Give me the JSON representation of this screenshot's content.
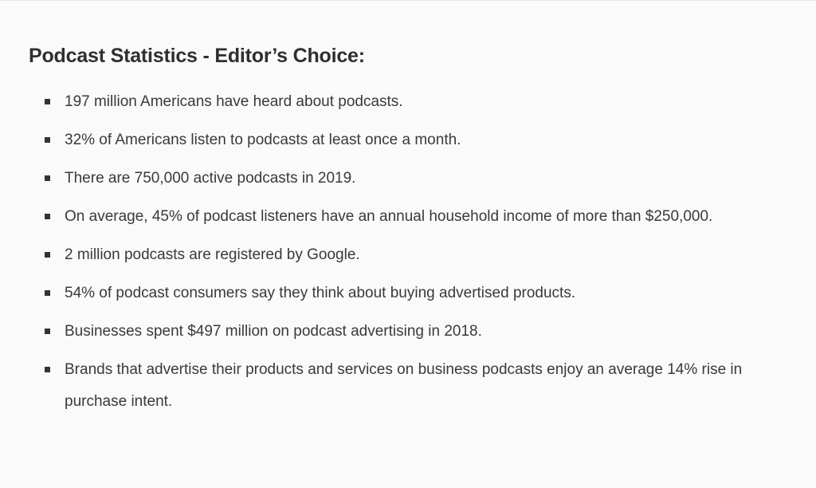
{
  "article": {
    "heading": "Podcast Statistics - Editor’s Choice:",
    "items": [
      {
        "text": "197 million Americans have heard about podcasts."
      },
      {
        "text": "32% of Americans listen to podcasts at least once a month."
      },
      {
        "text": "There are 750,000 active podcasts in 2019."
      },
      {
        "text": "On average, 45% of podcast listeners have an annual household income of more than $250,000."
      },
      {
        "text": "2 million podcasts are registered by Google."
      },
      {
        "text": "54% of podcast consumers say they think about buying advertised products."
      },
      {
        "text": "Businesses spent $497 million on podcast advertising in 2018."
      },
      {
        "text": "Brands that advertise their products and services on business podcasts enjoy an average 14% rise in purchase intent."
      }
    ]
  }
}
